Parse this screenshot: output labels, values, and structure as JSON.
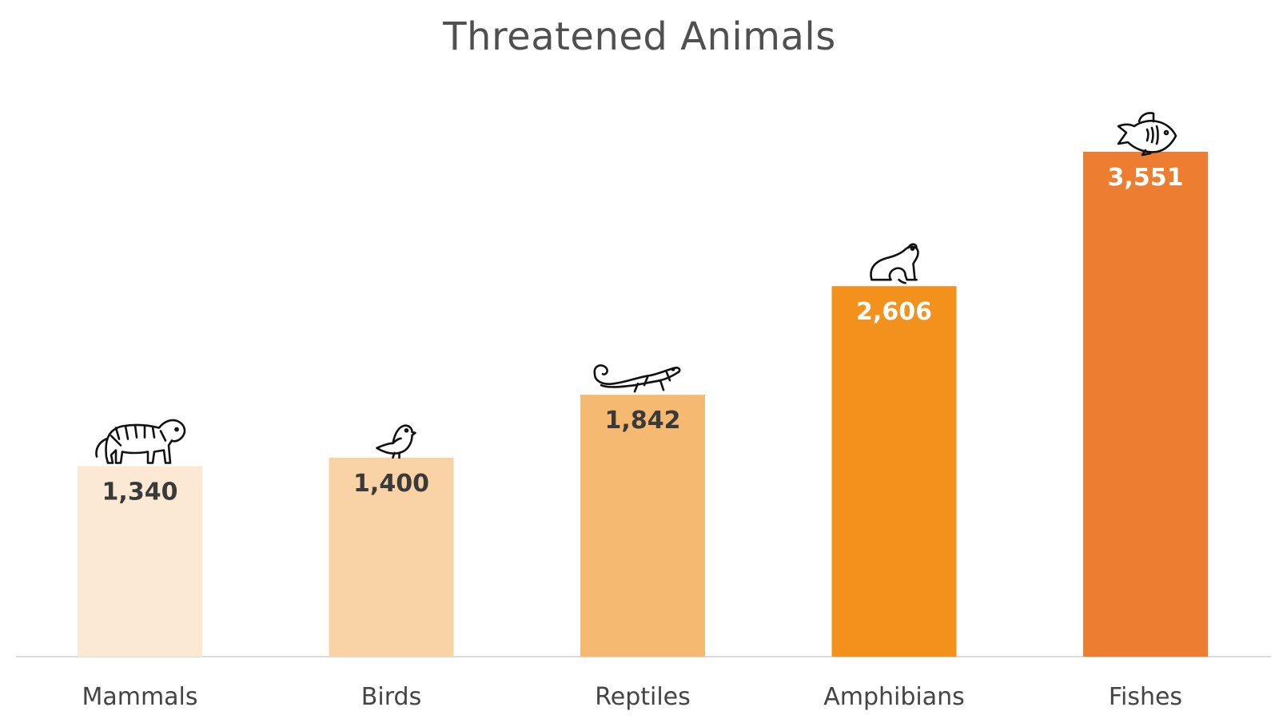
{
  "chart_data": {
    "type": "bar",
    "title": "Threatened Animals",
    "xlabel": "",
    "ylabel": "",
    "ylim": [
      0,
      4000
    ],
    "grid": false,
    "legend": "none",
    "categories": [
      "Mammals",
      "Birds",
      "Reptiles",
      "Amphibians",
      "Fishes"
    ],
    "values": [
      1340,
      1400,
      1842,
      2606,
      3551
    ],
    "value_labels": [
      "1,340",
      "1,400",
      "1,842",
      "2,606",
      "3,551"
    ],
    "bar_colors": [
      "#fbe9d3",
      "#f9d3a5",
      "#f5b971",
      "#f2921d",
      "#ec7d31"
    ],
    "label_colors": [
      "#3a3a3a",
      "#3a3a3a",
      "#3a3a3a",
      "#ffffff",
      "#ffffff"
    ],
    "icons": [
      "tiger-icon",
      "bird-icon",
      "lizard-icon",
      "frog-icon",
      "fish-icon"
    ],
    "axis_color": "#d0d0d0"
  }
}
